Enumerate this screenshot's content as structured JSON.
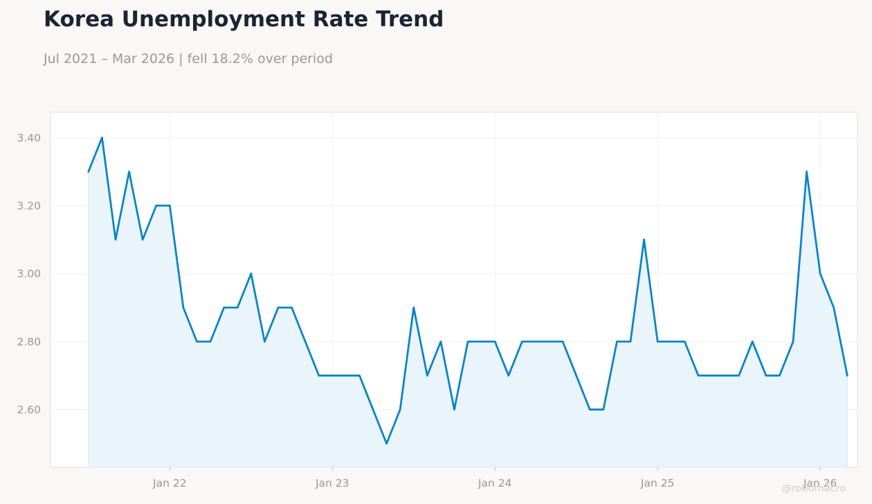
{
  "title": "Korea Unemployment Rate Trend",
  "subtitle": "Jul 2021 – Mar 2026 | fell 18.2% over period",
  "watermark": "@robomacro",
  "colors": {
    "line": "#0a84c6",
    "fill": "#eaf4fb",
    "grid": "#eef0f2",
    "plot_border": "#deddd8"
  },
  "chart_data": {
    "type": "area",
    "title": "Korea Unemployment Rate Trend",
    "subtitle": "Jul 2021 – Mar 2026 | fell 18.2% over period",
    "xlabel": "",
    "ylabel": "",
    "x": [
      "2021-07",
      "2021-08",
      "2021-09",
      "2021-10",
      "2021-11",
      "2021-12",
      "2022-01",
      "2022-02",
      "2022-03",
      "2022-04",
      "2022-05",
      "2022-06",
      "2022-07",
      "2022-08",
      "2022-09",
      "2022-10",
      "2022-11",
      "2022-12",
      "2023-01",
      "2023-02",
      "2023-03",
      "2023-04",
      "2023-05",
      "2023-06",
      "2023-07",
      "2023-08",
      "2023-09",
      "2023-10",
      "2023-11",
      "2023-12",
      "2024-01",
      "2024-02",
      "2024-03",
      "2024-04",
      "2024-05",
      "2024-06",
      "2024-07",
      "2024-08",
      "2024-09",
      "2024-10",
      "2024-11",
      "2024-12",
      "2025-01",
      "2025-02",
      "2025-03",
      "2025-04",
      "2025-05",
      "2025-06",
      "2025-07",
      "2025-08",
      "2025-09",
      "2025-10",
      "2025-11",
      "2025-12",
      "2026-01",
      "2026-02",
      "2026-03"
    ],
    "values": [
      3.3,
      3.4,
      3.1,
      3.3,
      3.1,
      3.2,
      3.2,
      2.9,
      2.8,
      2.8,
      2.9,
      2.9,
      3.0,
      2.8,
      2.9,
      2.9,
      2.8,
      2.7,
      2.7,
      2.7,
      2.7,
      2.6,
      2.5,
      2.6,
      2.9,
      2.7,
      2.8,
      2.6,
      2.8,
      2.8,
      2.8,
      2.7,
      2.8,
      2.8,
      2.8,
      2.8,
      2.7,
      2.6,
      2.6,
      2.8,
      2.8,
      3.1,
      2.8,
      2.8,
      2.8,
      2.7,
      2.7,
      2.7,
      2.7,
      2.8,
      2.7,
      2.7,
      2.8,
      3.3,
      3.0,
      2.9,
      2.7
    ],
    "ylim": [
      2.43,
      3.475
    ],
    "yticks": [
      "2.60",
      "2.80",
      "3.00",
      "3.20",
      "3.40"
    ],
    "xticks": [
      {
        "date": "2022-01",
        "label": "Jan 22"
      },
      {
        "date": "2023-01",
        "label": "Jan 23"
      },
      {
        "date": "2024-01",
        "label": "Jan 24"
      },
      {
        "date": "2025-01",
        "label": "Jan 25"
      },
      {
        "date": "2026-01",
        "label": "Jan 26"
      }
    ],
    "grid": true,
    "legend": "none"
  }
}
